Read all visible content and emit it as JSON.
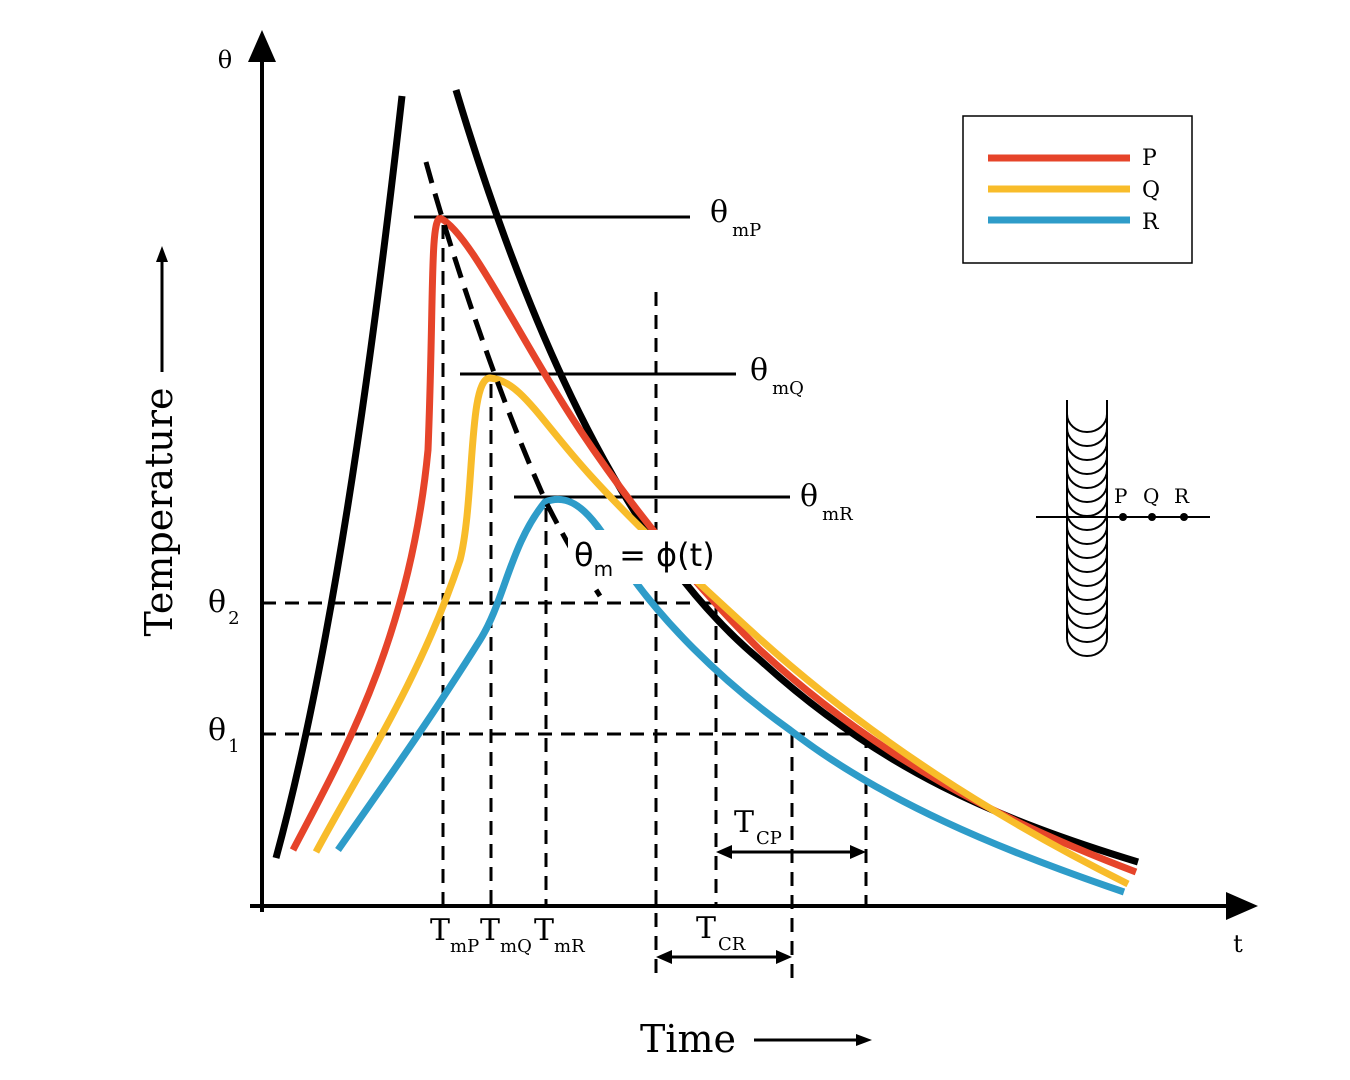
{
  "axes": {
    "y_symbol": "θ",
    "x_symbol": "t",
    "y_title": "Temperature",
    "x_title": "Time"
  },
  "colors": {
    "P": "#e6442a",
    "Q": "#f8bc2a",
    "R": "#2e9cc9",
    "envelope": "#000000"
  },
  "legend": {
    "items": [
      {
        "key": "P",
        "label": "P"
      },
      {
        "key": "Q",
        "label": "Q"
      },
      {
        "key": "R",
        "label": "R"
      }
    ]
  },
  "peaks": {
    "P": {
      "base": "θ",
      "sub": "mP"
    },
    "Q": {
      "base": "θ",
      "sub": "mQ"
    },
    "R": {
      "base": "θ",
      "sub": "mR"
    }
  },
  "levels": {
    "theta2": {
      "base": "θ",
      "sub": "2"
    },
    "theta1": {
      "base": "θ",
      "sub": "1"
    }
  },
  "peak_times": {
    "P": {
      "base": "T",
      "sub": "mP"
    },
    "Q": {
      "base": "T",
      "sub": "mQ"
    },
    "R": {
      "base": "T",
      "sub": "mR"
    }
  },
  "cooling_times": {
    "TCP": {
      "base": "T",
      "sub": "CP"
    },
    "TCR": {
      "base": "T",
      "sub": "CR"
    }
  },
  "locus": {
    "base": "θ",
    "sub": "m",
    "rest": "= ϕ(t)"
  },
  "weld_inset": {
    "points": [
      "P",
      "Q",
      "R"
    ]
  }
}
